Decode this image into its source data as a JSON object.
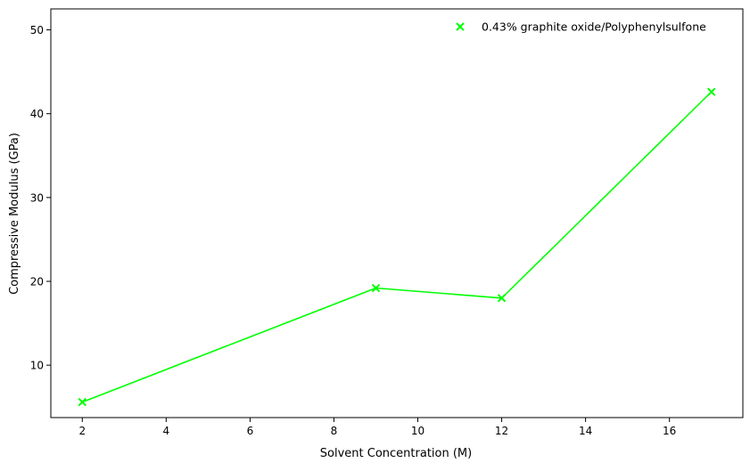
{
  "chart_data": {
    "type": "line",
    "xlabel": "Solvent Concentration (M)",
    "ylabel": "Compressive Modulus (GPa)",
    "xlim": [
      1.25,
      17.75
    ],
    "ylim": [
      3.75,
      52.5
    ],
    "xticks": [
      2,
      4,
      6,
      8,
      10,
      12,
      14,
      16
    ],
    "yticks": [
      10,
      20,
      30,
      40,
      50
    ],
    "grid": false,
    "legend_position": "top-right",
    "series": [
      {
        "name": "0.43% graphite oxide/Polyphenylsulfone",
        "color": "#00ff00",
        "marker": "x",
        "x": [
          2,
          9,
          12,
          17
        ],
        "y": [
          5.6,
          19.2,
          18.0,
          42.6
        ]
      }
    ]
  }
}
